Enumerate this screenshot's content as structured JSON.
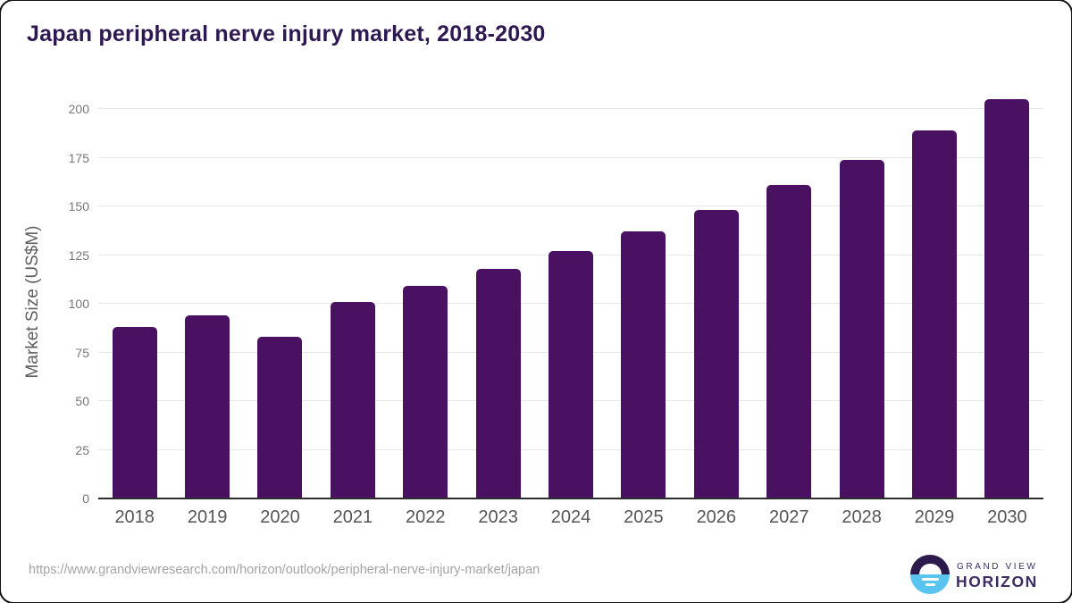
{
  "page": {
    "source_url": "https://www.grandviewresearch.com/horizon/outlook/peripheral-nerve-injury-market/japan",
    "logo": {
      "line1": "GRAND VIEW",
      "line2": "HORIZON"
    }
  },
  "chart_data": {
    "type": "bar",
    "title": "Japan peripheral nerve injury market, 2018-2030",
    "categories": [
      "2018",
      "2019",
      "2020",
      "2021",
      "2022",
      "2023",
      "2024",
      "2025",
      "2026",
      "2027",
      "2028",
      "2029",
      "2030"
    ],
    "values": [
      88,
      94,
      83,
      101,
      109,
      118,
      127,
      137,
      148,
      161,
      174,
      189,
      205
    ],
    "xlabel": "",
    "ylabel": "Market Size (US$M)",
    "ylim": [
      0,
      200
    ],
    "yticks": [
      0,
      25,
      50,
      75,
      100,
      125,
      150,
      175,
      200
    ],
    "grid": "horizontal",
    "legend": "none",
    "bar_color": "#4a1061"
  },
  "colors": {
    "title": "#2e1852",
    "bar": "#4a1061",
    "gridline": "#e7e7e7",
    "axis_line": "#2d2d2d",
    "tick_label": "#777777",
    "x_label": "#555555",
    "url_text": "#a4a4a4",
    "logo_purple": "#2c1a4d",
    "logo_blue": "#59c4f0"
  }
}
